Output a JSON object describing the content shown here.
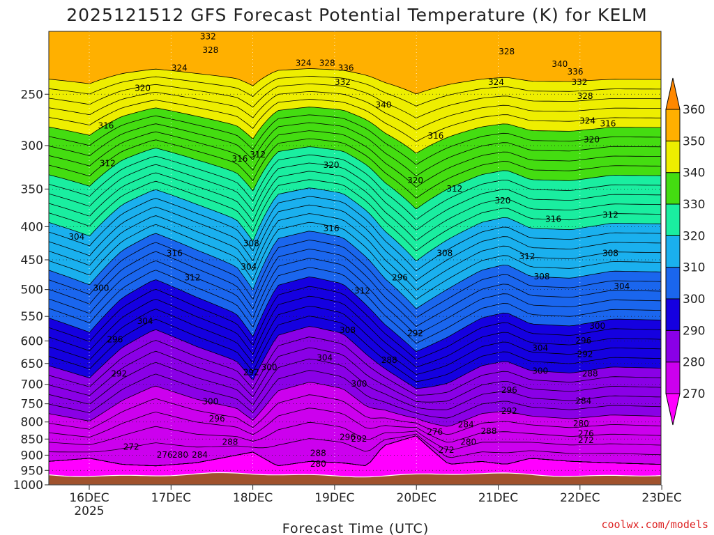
{
  "chart_data": {
    "type": "heatmap",
    "title": "2025121512 GFS Forecast Potential Temperature (K) for KELM",
    "xlabel": "Forecast Time (UTC)",
    "credit": "coolwx.com/models",
    "x_ticks": [
      {
        "label": "16DEC",
        "sub": "2025"
      },
      {
        "label": "17DEC",
        "sub": ""
      },
      {
        "label": "18DEC",
        "sub": ""
      },
      {
        "label": "19DEC",
        "sub": ""
      },
      {
        "label": "20DEC",
        "sub": ""
      },
      {
        "label": "21DEC",
        "sub": ""
      },
      {
        "label": "22DEC",
        "sub": ""
      },
      {
        "label": "23DEC",
        "sub": ""
      }
    ],
    "x_tick_values": [
      0.5,
      1.5,
      2.5,
      3.5,
      4.5,
      5.5,
      6.5,
      7.5
    ],
    "x_range": [
      0,
      7.5
    ],
    "y_ticks": [
      250,
      300,
      350,
      400,
      450,
      500,
      550,
      600,
      650,
      700,
      750,
      800,
      850,
      900,
      950,
      1000
    ],
    "y_range": [
      200,
      1000
    ],
    "y_log": true,
    "colorbar": {
      "levels": [
        270,
        280,
        290,
        300,
        310,
        320,
        330,
        340,
        350,
        360
      ],
      "colors": [
        "#ff00ff",
        "#cc00ee",
        "#8a00e6",
        "#1500e0",
        "#1a66ee",
        "#1ab0ee",
        "#1aeea0",
        "#44dd11",
        "#eeee00",
        "#ffb000",
        "#ff8800"
      ]
    },
    "surface_color": "#a0522d",
    "surface_pressure": 965,
    "profiles": [
      {
        "t": 0.0,
        "p270": 920,
        "s": 1.0
      },
      {
        "t": 0.5,
        "p270": 910,
        "s": 0.9
      },
      {
        "t": 0.9,
        "p270": 930,
        "s": 1.15
      },
      {
        "t": 1.3,
        "p270": 935,
        "s": 1.3
      },
      {
        "t": 1.8,
        "p270": 925,
        "s": 1.15
      },
      {
        "t": 2.3,
        "p270": 900,
        "s": 1.0
      },
      {
        "t": 2.5,
        "p270": 890,
        "s": 0.85
      },
      {
        "t": 2.8,
        "p270": 935,
        "s": 1.25
      },
      {
        "t": 3.2,
        "p270": 920,
        "s": 1.3
      },
      {
        "t": 3.6,
        "p270": 925,
        "s": 1.25
      },
      {
        "t": 3.9,
        "p270": 935,
        "s": 1.1
      },
      {
        "t": 4.1,
        "p270": 870,
        "s": 0.9
      },
      {
        "t": 4.5,
        "p270": 840,
        "s": 0.7
      },
      {
        "t": 4.9,
        "p270": 930,
        "s": 0.9
      },
      {
        "t": 5.3,
        "p270": 920,
        "s": 1.0
      },
      {
        "t": 5.6,
        "p270": 930,
        "s": 1.05
      },
      {
        "t": 5.9,
        "p270": 910,
        "s": 0.95
      },
      {
        "t": 6.4,
        "p270": 920,
        "s": 0.95
      },
      {
        "t": 6.9,
        "p270": 925,
        "s": 1.0
      },
      {
        "t": 7.5,
        "p270": 930,
        "s": 1.0
      }
    ],
    "contour_labels": [
      {
        "text": "332",
        "t": 1.95,
        "p": 204
      },
      {
        "text": "328",
        "t": 1.98,
        "p": 214
      },
      {
        "text": "324",
        "t": 1.6,
        "p": 228
      },
      {
        "text": "320",
        "t": 1.15,
        "p": 245
      },
      {
        "text": "316",
        "t": 0.7,
        "p": 280
      },
      {
        "text": "312",
        "t": 0.72,
        "p": 320
      },
      {
        "text": "304",
        "t": 0.34,
        "p": 415
      },
      {
        "text": "300",
        "t": 0.64,
        "p": 498
      },
      {
        "text": "304",
        "t": 1.18,
        "p": 560
      },
      {
        "text": "296",
        "t": 0.81,
        "p": 598
      },
      {
        "text": "292",
        "t": 0.86,
        "p": 675
      },
      {
        "text": "272",
        "t": 1.01,
        "p": 875
      },
      {
        "text": "276",
        "t": 1.42,
        "p": 900
      },
      {
        "text": "280",
        "t": 1.61,
        "p": 900
      },
      {
        "text": "284",
        "t": 1.85,
        "p": 900
      },
      {
        "text": "316",
        "t": 1.54,
        "p": 440
      },
      {
        "text": "312",
        "t": 1.76,
        "p": 480
      },
      {
        "text": "316",
        "t": 2.34,
        "p": 315
      },
      {
        "text": "312",
        "t": 2.56,
        "p": 310
      },
      {
        "text": "308",
        "t": 2.48,
        "p": 425
      },
      {
        "text": "304",
        "t": 2.45,
        "p": 462
      },
      {
        "text": "300",
        "t": 2.7,
        "p": 660
      },
      {
        "text": "292",
        "t": 2.48,
        "p": 672
      },
      {
        "text": "300",
        "t": 1.98,
        "p": 745
      },
      {
        "text": "296",
        "t": 2.06,
        "p": 792
      },
      {
        "text": "288",
        "t": 2.22,
        "p": 860
      },
      {
        "text": "324",
        "t": 3.12,
        "p": 224
      },
      {
        "text": "328",
        "t": 3.41,
        "p": 224
      },
      {
        "text": "336",
        "t": 3.64,
        "p": 228
      },
      {
        "text": "332",
        "t": 3.6,
        "p": 240
      },
      {
        "text": "340",
        "t": 4.1,
        "p": 260
      },
      {
        "text": "320",
        "t": 3.46,
        "p": 322
      },
      {
        "text": "316",
        "t": 3.46,
        "p": 403
      },
      {
        "text": "312",
        "t": 3.84,
        "p": 503
      },
      {
        "text": "308",
        "t": 3.66,
        "p": 578
      },
      {
        "text": "304",
        "t": 3.38,
        "p": 638
      },
      {
        "text": "300",
        "t": 3.8,
        "p": 700
      },
      {
        "text": "296",
        "t": 3.66,
        "p": 845
      },
      {
        "text": "292",
        "t": 3.8,
        "p": 850
      },
      {
        "text": "288",
        "t": 3.3,
        "p": 895
      },
      {
        "text": "280",
        "t": 3.3,
        "p": 930
      },
      {
        "text": "320",
        "t": 4.49,
        "p": 340
      },
      {
        "text": "316",
        "t": 4.74,
        "p": 290
      },
      {
        "text": "312",
        "t": 4.97,
        "p": 350
      },
      {
        "text": "308",
        "t": 4.85,
        "p": 440
      },
      {
        "text": "296",
        "t": 4.3,
        "p": 480
      },
      {
        "text": "292",
        "t": 4.49,
        "p": 585
      },
      {
        "text": "288",
        "t": 4.17,
        "p": 643
      },
      {
        "text": "276",
        "t": 4.73,
        "p": 830
      },
      {
        "text": "272",
        "t": 4.87,
        "p": 885
      },
      {
        "text": "280",
        "t": 5.14,
        "p": 860
      },
      {
        "text": "284",
        "t": 5.11,
        "p": 808
      },
      {
        "text": "288",
        "t": 5.39,
        "p": 828
      },
      {
        "text": "292",
        "t": 5.64,
        "p": 770
      },
      {
        "text": "296",
        "t": 5.64,
        "p": 715
      },
      {
        "text": "300",
        "t": 6.02,
        "p": 668
      },
      {
        "text": "304",
        "t": 6.02,
        "p": 616
      },
      {
        "text": "308",
        "t": 6.04,
        "p": 478
      },
      {
        "text": "312",
        "t": 5.86,
        "p": 445
      },
      {
        "text": "316",
        "t": 6.18,
        "p": 390
      },
      {
        "text": "320",
        "t": 5.56,
        "p": 365
      },
      {
        "text": "324",
        "t": 5.48,
        "p": 240
      },
      {
        "text": "328",
        "t": 5.61,
        "p": 215
      },
      {
        "text": "340",
        "t": 6.26,
        "p": 225
      },
      {
        "text": "336",
        "t": 6.45,
        "p": 231
      },
      {
        "text": "332",
        "t": 6.5,
        "p": 240
      },
      {
        "text": "328",
        "t": 6.57,
        "p": 252
      },
      {
        "text": "324",
        "t": 6.6,
        "p": 275
      },
      {
        "text": "316",
        "t": 6.85,
        "p": 278
      },
      {
        "text": "320",
        "t": 6.65,
        "p": 294
      },
      {
        "text": "312",
        "t": 6.88,
        "p": 384
      },
      {
        "text": "308",
        "t": 6.88,
        "p": 440
      },
      {
        "text": "304",
        "t": 7.02,
        "p": 495
      },
      {
        "text": "300",
        "t": 6.72,
        "p": 570
      },
      {
        "text": "296",
        "t": 6.55,
        "p": 600
      },
      {
        "text": "292",
        "t": 6.57,
        "p": 630
      },
      {
        "text": "288",
        "t": 6.63,
        "p": 675
      },
      {
        "text": "284",
        "t": 6.55,
        "p": 743
      },
      {
        "text": "280",
        "t": 6.52,
        "p": 805
      },
      {
        "text": "276",
        "t": 6.58,
        "p": 835
      },
      {
        "text": "272",
        "t": 6.58,
        "p": 855
      }
    ]
  }
}
